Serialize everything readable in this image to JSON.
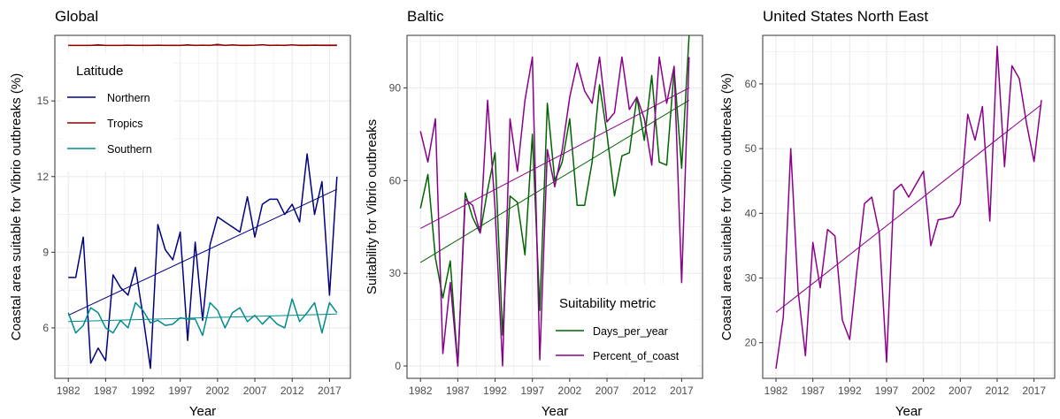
{
  "colors": {
    "northern": "#000080",
    "tropics": "#8b0000",
    "southern": "#008b8b",
    "days": "#006400",
    "percent": "#8b008b",
    "grid": "#ebebeb",
    "frame": "#333333"
  },
  "chart_data": [
    {
      "type": "line",
      "title": "Global",
      "xlabel": "Year",
      "ylabel": "Coastal area suitable for Vibrio outbreaks (%)",
      "xlim": [
        1980.2,
        2019.8
      ],
      "ylim": [
        4.0,
        17.6
      ],
      "xticks": [
        1982,
        1987,
        1992,
        1997,
        2002,
        2007,
        2012,
        2017
      ],
      "xtick_labels": [
        "1982",
        "1987",
        "1992",
        "1997",
        "2002",
        "2007",
        "2012",
        "2017"
      ],
      "yticks": [
        6,
        9,
        12,
        15
      ],
      "ytick_labels": [
        "6",
        "9",
        "12",
        "15"
      ],
      "grid": true,
      "legend": {
        "title": "Latitude",
        "placement": "top-left",
        "entries": [
          {
            "label": "Northern",
            "color_key": "northern"
          },
          {
            "label": "Tropics",
            "color_key": "tropics"
          },
          {
            "label": "Southern",
            "color_key": "southern"
          }
        ]
      },
      "x": [
        1982,
        1983,
        1984,
        1985,
        1986,
        1987,
        1988,
        1989,
        1990,
        1991,
        1992,
        1993,
        1994,
        1995,
        1996,
        1997,
        1998,
        1999,
        2000,
        2001,
        2002,
        2003,
        2004,
        2005,
        2006,
        2007,
        2008,
        2009,
        2010,
        2011,
        2012,
        2013,
        2014,
        2015,
        2016,
        2017,
        2018
      ],
      "series": [
        {
          "name": "Northern",
          "color_key": "northern",
          "values": [
            8.0,
            8.0,
            9.6,
            4.6,
            5.2,
            4.7,
            8.1,
            7.6,
            7.3,
            8.4,
            6.5,
            4.4,
            10.1,
            9.1,
            8.7,
            9.8,
            5.5,
            9.4,
            6.3,
            9.3,
            10.4,
            10.2,
            10.0,
            9.8,
            11.2,
            9.6,
            10.9,
            11.1,
            11.1,
            10.5,
            10.9,
            10.2,
            12.9,
            10.5,
            11.8,
            7.3,
            12.0
          ],
          "trend": [
            6.5,
            11.5
          ]
        },
        {
          "name": "Tropics",
          "color_key": "tropics",
          "values": [
            17.2,
            17.2,
            17.2,
            17.2,
            17.22,
            17.2,
            17.2,
            17.2,
            17.21,
            17.2,
            17.2,
            17.2,
            17.21,
            17.2,
            17.2,
            17.2,
            17.22,
            17.2,
            17.21,
            17.2,
            17.24,
            17.2,
            17.22,
            17.2,
            17.2,
            17.21,
            17.23,
            17.2,
            17.21,
            17.2,
            17.22,
            17.2,
            17.2,
            17.21,
            17.2,
            17.2,
            17.2
          ],
          "trend": [
            17.2,
            17.22
          ]
        },
        {
          "name": "Southern",
          "color_key": "southern",
          "values": [
            6.6,
            5.8,
            6.1,
            6.8,
            6.6,
            6.0,
            5.8,
            6.3,
            6.0,
            7.0,
            6.7,
            6.2,
            6.3,
            6.1,
            6.15,
            6.4,
            6.35,
            6.35,
            5.7,
            7.0,
            6.7,
            6.0,
            6.6,
            6.8,
            6.25,
            6.5,
            6.15,
            6.45,
            6.15,
            6.0,
            7.15,
            6.25,
            6.6,
            7.0,
            5.8,
            7.0,
            6.6
          ],
          "trend": [
            6.25,
            6.55
          ]
        }
      ]
    },
    {
      "type": "line",
      "title": "Baltic",
      "xlabel": "Year",
      "ylabel": "Suitability for Vibrio outbreaks",
      "xlim": [
        1980.2,
        2019.8
      ],
      "ylim": [
        -4,
        107
      ],
      "xticks": [
        1982,
        1987,
        1992,
        1997,
        2002,
        2007,
        2012,
        2017
      ],
      "xtick_labels": [
        "1982",
        "1987",
        "1992",
        "1997",
        "2002",
        "2007",
        "2012",
        "2017"
      ],
      "yticks": [
        0,
        30,
        60,
        90
      ],
      "ytick_labels": [
        "0",
        "30",
        "60",
        "90"
      ],
      "grid": true,
      "legend": {
        "title": "Suitability metric",
        "placement": "bottom-right",
        "entries": [
          {
            "label": "Days_per_year",
            "color_key": "days"
          },
          {
            "label": "Percent_of_coast",
            "color_key": "percent"
          }
        ]
      },
      "x": [
        1982,
        1983,
        1984,
        1985,
        1986,
        1987,
        1988,
        1989,
        1990,
        1991,
        1992,
        1993,
        1994,
        1995,
        1996,
        1997,
        1998,
        1999,
        2000,
        2001,
        2002,
        2003,
        2004,
        2005,
        2006,
        2007,
        2008,
        2009,
        2010,
        2011,
        2012,
        2013,
        2014,
        2015,
        2016,
        2017,
        2018
      ],
      "series": [
        {
          "name": "Days_per_year",
          "color_key": "days",
          "values": [
            51,
            62,
            35,
            22,
            34,
            0,
            56,
            48,
            43,
            57,
            69,
            10,
            55,
            53,
            36,
            75,
            18,
            85,
            60,
            66,
            80,
            52,
            52,
            66,
            91,
            75,
            55,
            68,
            69,
            87,
            73,
            94,
            66,
            65,
            96,
            64,
            107
          ],
          "trend": [
            33.5,
            86
          ]
        },
        {
          "name": "Percent_of_coast",
          "color_key": "percent",
          "values": [
            76,
            66,
            80,
            4,
            27,
            0,
            54,
            52,
            43,
            86,
            51,
            0,
            80,
            63,
            86,
            100,
            2,
            70,
            58,
            70,
            87,
            98,
            89,
            85,
            100,
            79,
            82,
            100,
            83,
            87,
            80,
            65,
            100,
            85,
            97,
            27,
            100
          ],
          "trend": [
            44.5,
            90
          ]
        }
      ]
    },
    {
      "type": "line",
      "title": "United States North East",
      "xlabel": "Year",
      "ylabel": "Coastal area suitable for Vibrio outbreaks (%)",
      "xlim": [
        1980.2,
        2019.8
      ],
      "ylim": [
        14.5,
        67.5
      ],
      "xticks": [
        1982,
        1987,
        1992,
        1997,
        2002,
        2007,
        2012,
        2017
      ],
      "xtick_labels": [
        "1982",
        "1987",
        "1992",
        "1997",
        "2002",
        "2007",
        "2012",
        "2017"
      ],
      "yticks": [
        20,
        30,
        40,
        50,
        60
      ],
      "ytick_labels": [
        "20",
        "30",
        "40",
        "50",
        "60"
      ],
      "grid": true,
      "x": [
        1982,
        1983,
        1984,
        1985,
        1986,
        1987,
        1988,
        1989,
        1990,
        1991,
        1992,
        1993,
        1994,
        1995,
        1996,
        1997,
        1998,
        1999,
        2000,
        2001,
        2002,
        2003,
        2004,
        2005,
        2006,
        2007,
        2008,
        2009,
        2010,
        2011,
        2012,
        2013,
        2014,
        2015,
        2016,
        2017,
        2018
      ],
      "series": [
        {
          "color_key": "percent",
          "values": [
            16,
            24,
            50,
            28,
            18,
            35.5,
            28.5,
            37.5,
            36.5,
            23.5,
            20.5,
            31.5,
            41.5,
            42.5,
            37,
            17,
            43.5,
            44.5,
            42.5,
            44.5,
            46.5,
            35,
            39,
            39.2,
            39.5,
            41.5,
            55.3,
            51.3,
            56.5,
            38.8,
            65.8,
            47.2,
            62.8,
            60.8,
            53.8,
            48,
            57.5
          ],
          "trend": [
            24.7,
            56.8
          ]
        }
      ]
    }
  ]
}
